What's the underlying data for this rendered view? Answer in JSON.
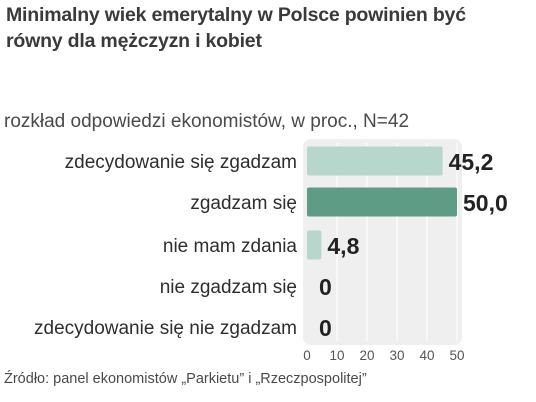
{
  "title": "Minimalny wiek emerytalny w Polsce powinien być równy dla mężczyzn i kobiet",
  "subtitle": "rozkład odpowiedzi ekonomistów, w proc., N=42",
  "source": "Źródło: panel ekonomistów „Parkietu” i „Rzeczpospolitej”",
  "colors": {
    "plot_background": "#efefef",
    "bar_default": "#b7d6cc",
    "bar_highlight": "#5e9c86",
    "gridline": "#ffffff"
  },
  "chart_data": {
    "type": "bar",
    "orientation": "horizontal",
    "categories": [
      "zdecydowanie się zgadzam",
      "zgadzam się",
      "nie mam zdania",
      "nie zgadzam się",
      "zdecydowanie się nie zgadzam"
    ],
    "values": [
      45.2,
      50.0,
      4.8,
      0,
      0
    ],
    "value_labels": [
      "45,2",
      "50,0",
      "4,8",
      "0",
      "0"
    ],
    "highlighted_category": "zgadzam się",
    "xlim": [
      0,
      50
    ],
    "xticks": [
      0,
      10,
      20,
      30,
      40,
      50
    ],
    "xtick_labels": [
      "0",
      "10",
      "20",
      "30",
      "40",
      "50"
    ],
    "grid": true
  }
}
